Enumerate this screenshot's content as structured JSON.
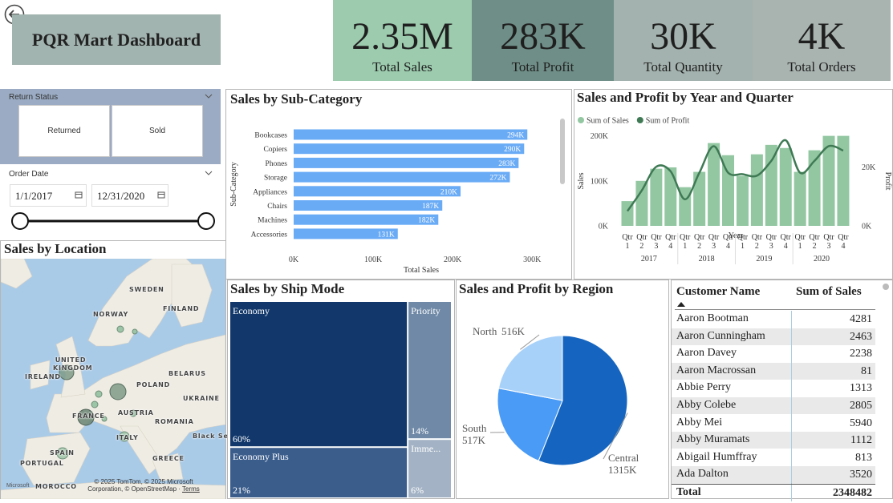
{
  "header": {
    "title": "PQR Mart Dashboard"
  },
  "kpis": [
    {
      "value": "2.35M",
      "label": "Total Sales"
    },
    {
      "value": "283K",
      "label": "Total Profit"
    },
    {
      "value": "30K",
      "label": "Total Quantity"
    },
    {
      "value": "4K",
      "label": "Total Orders"
    }
  ],
  "filters": {
    "return_status": {
      "title": "Return Status",
      "options": [
        "Returned",
        "Sold"
      ]
    },
    "order_date": {
      "title": "Order Date",
      "start": "1/1/2017",
      "end": "12/31/2020"
    }
  },
  "map": {
    "title": "Sales by Location",
    "labels": [
      "SWEDEN",
      "FINLAND",
      "NORWAY",
      "UNITED KINGDOM",
      "IRELAND",
      "BELARUS",
      "POLAND",
      "UKRAINE",
      "FRANCE",
      "AUSTRIA",
      "ROMANIA",
      "Black Se",
      "ITALY",
      "SPAIN",
      "PORTUGAL",
      "GREECE",
      "MOROCCO"
    ],
    "attribution": "© 2025 TomTom, © 2025 Microsoft Corporation, © OpenStreetMap",
    "terms": "Terms",
    "logo": "Microsoft"
  },
  "chart_data": [
    {
      "type": "bar",
      "orientation": "horizontal",
      "title": "Sales by Sub-Category",
      "x_label": "Total Sales",
      "y_label": "Sub-Category",
      "categories": [
        "Bookcases",
        "Copiers",
        "Phones",
        "Storage",
        "Appliances",
        "Chairs",
        "Machines",
        "Accessories"
      ],
      "values": [
        294000,
        290000,
        283000,
        272000,
        210000,
        187000,
        182000,
        131000
      ],
      "value_labels": [
        "294K",
        "290K",
        "283K",
        "272K",
        "210K",
        "187K",
        "182K",
        "131K"
      ],
      "color": "#6aabf6",
      "xlim": [
        0,
        320000
      ],
      "xticks": [
        {
          "value": 0,
          "label": "0K"
        },
        {
          "value": 100000,
          "label": "100K"
        },
        {
          "value": 200000,
          "label": "200K"
        },
        {
          "value": 300000,
          "label": "300K"
        }
      ]
    },
    {
      "type": "combo",
      "title": "Sales and Profit by Year and Quarter",
      "x_label": "Year",
      "y_label": "Sales",
      "y2_label": "Profit",
      "categories": [
        "Qtr 1",
        "Qtr 2",
        "Qtr 3",
        "Qtr 4",
        "Qtr 1",
        "Qtr 2",
        "Qtr 3",
        "Qtr 4",
        "Qtr 1",
        "Qtr 2",
        "Qtr 3",
        "Qtr 4",
        "Qtr 1",
        "Qtr 2",
        "Qtr 3",
        "Qtr 4"
      ],
      "years": [
        "2017",
        "2018",
        "2019",
        "2020"
      ],
      "series": [
        {
          "name": "Sum of Sales",
          "type": "bar",
          "color": "#93c7a2",
          "values": [
            55000,
            100000,
            127000,
            130000,
            86000,
            120000,
            184000,
            157000,
            111000,
            159000,
            180000,
            173000,
            120000,
            168000,
            200000,
            200000
          ]
        },
        {
          "name": "Sum of Profit",
          "type": "line",
          "axis": "y2",
          "color": "#3f7a55",
          "values": [
            5000,
            12000,
            20000,
            18500,
            9000,
            18000,
            27000,
            18000,
            17500,
            17000,
            22000,
            29000,
            18000,
            22000,
            27000,
            25500
          ]
        }
      ],
      "ylim": [
        0,
        210000
      ],
      "yticks": [
        {
          "value": 0,
          "label": "0K"
        },
        {
          "value": 100000,
          "label": "100K"
        },
        {
          "value": 200000,
          "label": "200K"
        }
      ],
      "y2lim": [
        0,
        32000
      ],
      "y2ticks": [
        {
          "value": 0,
          "label": "0K"
        },
        {
          "value": 20000,
          "label": "20K"
        }
      ]
    },
    {
      "type": "treemap",
      "title": "Sales by Ship Mode",
      "categories": [
        "Economy",
        "Economy Plus",
        "Priority",
        "Imme..."
      ],
      "values": [
        60,
        21,
        14,
        6
      ],
      "value_labels": [
        "60%",
        "21%",
        "14%",
        "6%"
      ],
      "colors": [
        "#12386b",
        "#3b5d8c",
        "#6f89a7",
        "#a3b3c5"
      ]
    },
    {
      "type": "pie",
      "title": "Sales and Profit by Region",
      "categories": [
        "Central",
        "South",
        "North"
      ],
      "values": [
        1315000,
        517000,
        516000
      ],
      "value_labels": [
        "1315K",
        "517K",
        "516K"
      ],
      "colors": [
        "#1565c0",
        "#4a9bf5",
        "#a8d1f9"
      ]
    }
  ],
  "table": {
    "columns": [
      "Customer Name",
      "Sum of Sales"
    ],
    "rows": [
      [
        "Aaron Bootman",
        4281
      ],
      [
        "Aaron Cunningham",
        2463
      ],
      [
        "Aaron Davey",
        2238
      ],
      [
        "Aaron Macrossan",
        81
      ],
      [
        "Abbie Perry",
        1313
      ],
      [
        "Abby Colebe",
        2805
      ],
      [
        "Abby Mei",
        5940
      ],
      [
        "Abby Muramats",
        1112
      ],
      [
        "Abigail Humffray",
        813
      ],
      [
        "Ada Dalton",
        3520
      ]
    ],
    "total": [
      "Total",
      2348482
    ]
  }
}
